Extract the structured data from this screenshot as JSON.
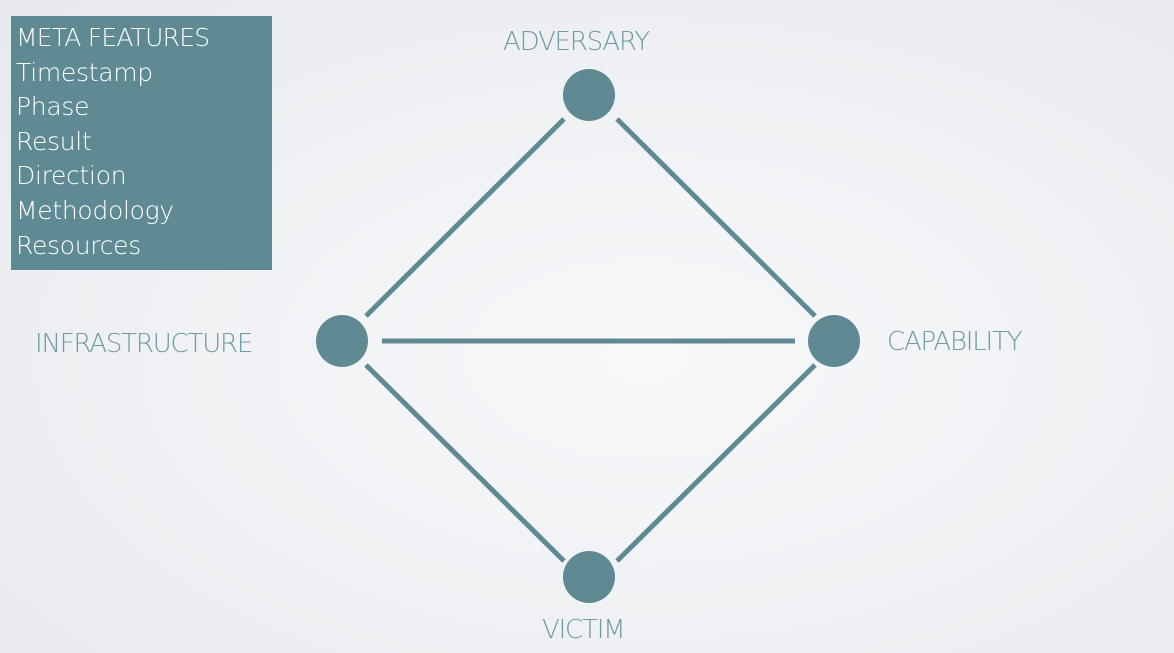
{
  "meta_features": {
    "title": "META FEATURES",
    "items": [
      "Timestamp",
      "Phase",
      "Result",
      "Direction",
      "Methodology",
      "Resources"
    ]
  },
  "nodes": {
    "adversary": "ADVERSARY",
    "infrastructure": "INFRASTRUCTURE",
    "capability": "CAPABILITY",
    "victim": "VICTIM"
  },
  "colors": {
    "accent": "#5f8a93",
    "label": "#6e9aa3",
    "box_text": "#ffffff"
  }
}
